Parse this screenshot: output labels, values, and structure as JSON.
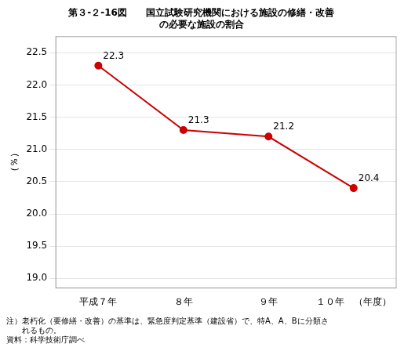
{
  "chart_data": {
    "type": "line",
    "title": [
      "第３-２-16図　　国立試験研究機関における施設の修繕・改善",
      "の必要な施設の割合"
    ],
    "categories": [
      "平成７年",
      "８年",
      "９年",
      "１０年　（年度）"
    ],
    "values": [
      22.3,
      21.3,
      21.2,
      20.4
    ],
    "color": "#cc0000",
    "marker": "circle",
    "ylabel": "（％）",
    "ylim": [
      18.85,
      22.75
    ],
    "yticks": [
      {
        "value": 19.0,
        "label": "19.0"
      },
      {
        "value": 19.5,
        "label": "19.5"
      },
      {
        "value": 20.0,
        "label": "20.0"
      },
      {
        "value": 20.5,
        "label": "20.5"
      },
      {
        "value": 21.0,
        "label": "21.0"
      },
      {
        "value": 21.5,
        "label": "21.5"
      },
      {
        "value": 22.0,
        "label": "22.0"
      },
      {
        "value": 22.5,
        "label": "22.5"
      }
    ],
    "grid": true,
    "data_labels": true,
    "annotations": [
      "注）老朽化（要修繕・改善）の基準は、緊急度判定基準（建設省）で、特A、A、Bに分類さ",
      "　　れるもの。",
      "資料：科学技術庁調べ"
    ]
  }
}
